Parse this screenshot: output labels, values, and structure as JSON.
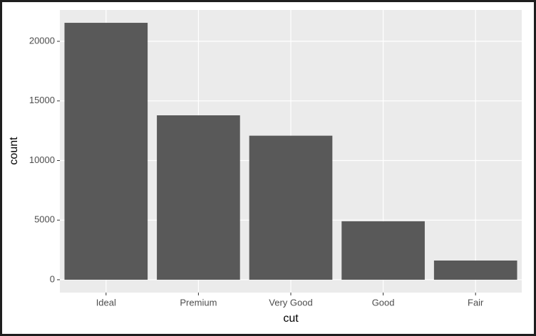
{
  "chart_data": {
    "type": "bar",
    "x_label": "cut",
    "y_label": "count",
    "categories": [
      "Ideal",
      "Premium",
      "Very Good",
      "Good",
      "Fair"
    ],
    "values": [
      21551,
      13791,
      12082,
      4906,
      1610
    ],
    "color": "#595959",
    "ylim": [
      -1078,
      22629
    ],
    "yticks": [
      0,
      5000,
      10000,
      15000,
      20000
    ],
    "grid": true
  }
}
